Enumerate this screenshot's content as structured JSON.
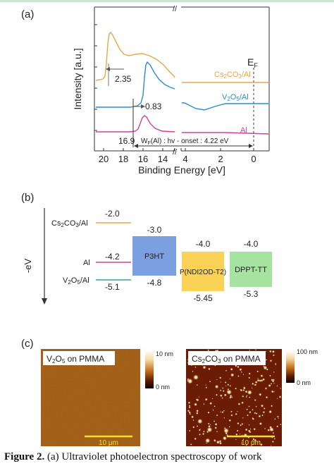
{
  "panel_a": {
    "label": "(a)",
    "ylabel": "Intensity [a.u.]",
    "xlabel": "Binding Energy [eV]",
    "break_mark": "//",
    "ticks": [
      "20",
      "18",
      "16",
      "14",
      "4",
      "2",
      "0"
    ],
    "ef_label": "E",
    "ef_sub": "F",
    "series": [
      {
        "name_pre": "Cs",
        "name_sub1": "2",
        "name_mid": "CO",
        "name_sub2": "3",
        "name_post": "/Al",
        "color": "#e8a64a"
      },
      {
        "name_pre": "V",
        "name_sub1": "2",
        "name_mid": "O",
        "name_sub2": "5",
        "name_post": "/Al",
        "color": "#2d8ad3"
      },
      {
        "name_pre": "Al",
        "name_sub1": "",
        "name_mid": "",
        "name_sub2": "",
        "name_post": "",
        "color": "#d3409d"
      }
    ],
    "annotations": {
      "shift_cs": "2.35",
      "shift_v": "0.83",
      "onset_al": "16.9",
      "wf_pre": "W",
      "wf_sub": "F",
      "wf_post": "(Al) : hv - onset : 4.22 eV"
    }
  },
  "panel_b": {
    "label": "(b)",
    "axis_label": "-eV",
    "electrodes": [
      {
        "name_pre": "Cs",
        "name_sub1": "2",
        "name_mid": "CO",
        "name_sub2": "3",
        "name_post": "/Al",
        "value": "-2.0",
        "color": "#e8a64a"
      },
      {
        "name_pre": "Al",
        "name_sub1": "",
        "name_mid": "",
        "name_sub2": "",
        "name_post": "",
        "value": "-4.2",
        "color": "#d3409d"
      },
      {
        "name_pre": "V",
        "name_sub1": "2",
        "name_mid": "O",
        "name_sub2": "5",
        "name_post": "/Al",
        "value": "-5.1",
        "color": "#2aa79b"
      }
    ],
    "semiconductors": [
      {
        "name": "P3HT",
        "lumo": "-3.0",
        "homo": "-4.8",
        "color": "#7c9fe0"
      },
      {
        "name": "P(NDI2OD-T2)",
        "lumo": "-4.0",
        "homo": "-5.45",
        "color": "#f9d256"
      },
      {
        "name": "DPPT-TT",
        "lumo": "-4.0",
        "homo": "-5.3",
        "color": "#a6e3a0"
      }
    ]
  },
  "panel_c": {
    "label": "(c)",
    "images": [
      {
        "title_pre": "V",
        "title_sub1": "2",
        "title_mid": "O",
        "title_sub2": "5",
        "title_post": " on PMMA",
        "scale_max": "10 nm",
        "scale_min": "0 nm",
        "scalebar": "10 μm"
      },
      {
        "title_pre": "Cs",
        "title_sub1": "2",
        "title_mid": "CO",
        "title_sub2": "3",
        "title_post": " on PMMA",
        "scale_max": "100 nm",
        "scale_min": "0 nm",
        "scalebar": "10 μm"
      }
    ]
  },
  "caption": {
    "bold": "Figure 2.",
    "text": " (a) Ultraviolet photoelectron spectroscopy of work"
  }
}
